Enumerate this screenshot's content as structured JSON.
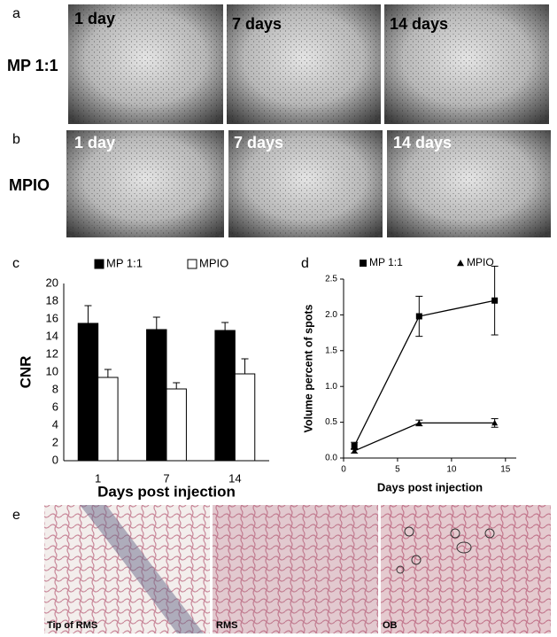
{
  "panels": {
    "a": {
      "label": "a",
      "row_label": "MP 1:1",
      "images": [
        "1 day",
        "7 days",
        "14 days"
      ]
    },
    "b": {
      "label": "b",
      "row_label": "MPIO",
      "images": [
        "1 day",
        "7 days",
        "14 days"
      ]
    },
    "e": {
      "label": "e",
      "images": [
        "Tip of RMS",
        "RMS",
        "OB"
      ]
    }
  },
  "chart_data": [
    {
      "type": "bar",
      "panel_label": "c",
      "y_label": "CNR",
      "x_label": "Days post injection",
      "categories": [
        "1",
        "7",
        "14"
      ],
      "series": [
        {
          "name": "MP 1:1",
          "color": "#000000",
          "values": [
            15.5,
            14.8,
            14.7
          ],
          "errors": [
            2.0,
            1.4,
            0.9
          ]
        },
        {
          "name": "MPIO",
          "color": "#ffffff",
          "values": [
            9.4,
            8.1,
            9.8
          ],
          "errors": [
            0.9,
            0.7,
            1.7
          ]
        }
      ],
      "ylim": [
        0,
        20
      ],
      "yticks": [
        0,
        2,
        4,
        6,
        8,
        10,
        12,
        14,
        16,
        18,
        20
      ],
      "grid": false
    },
    {
      "type": "line",
      "panel_label": "d",
      "y_label": "Volume percent of spots",
      "x_label": "Days post injection",
      "x": [
        1,
        7,
        14
      ],
      "series": [
        {
          "name": "MP 1:1",
          "color": "#000000",
          "marker": "square",
          "values": [
            0.17,
            1.98,
            2.2
          ],
          "errors": [
            0.05,
            0.28,
            0.48
          ]
        },
        {
          "name": "MPIO",
          "color": "#000000",
          "marker": "triangle",
          "values": [
            0.1,
            0.49,
            0.49
          ],
          "errors": [
            0.03,
            0.04,
            0.06
          ]
        }
      ],
      "xlim": [
        0,
        16
      ],
      "xticks": [
        0,
        5,
        10,
        15
      ],
      "ylim": [
        0,
        2.5
      ],
      "yticks": [
        {
          "value": 0,
          "label": "0.0"
        },
        {
          "value": 0.5,
          "label": "0.5"
        },
        {
          "value": 1,
          "label": "1.0"
        },
        {
          "value": 1.5,
          "label": "1.5"
        },
        {
          "value": 2,
          "label": "2.0"
        },
        {
          "value": 2.5,
          "label": "2.5"
        }
      ],
      "grid": false
    }
  ]
}
